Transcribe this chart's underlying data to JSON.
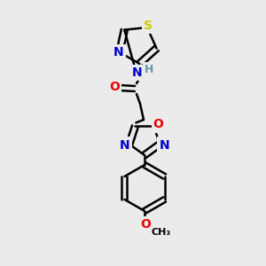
{
  "bg_color": "#ebebeb",
  "atom_colors": {
    "C": "#000000",
    "N": "#0000cc",
    "O": "#ee0000",
    "S": "#cccc00",
    "H": "#6699aa"
  },
  "bond_color": "#000000",
  "bond_width": 1.8,
  "font_size_atom": 10,
  "font_size_h": 9
}
